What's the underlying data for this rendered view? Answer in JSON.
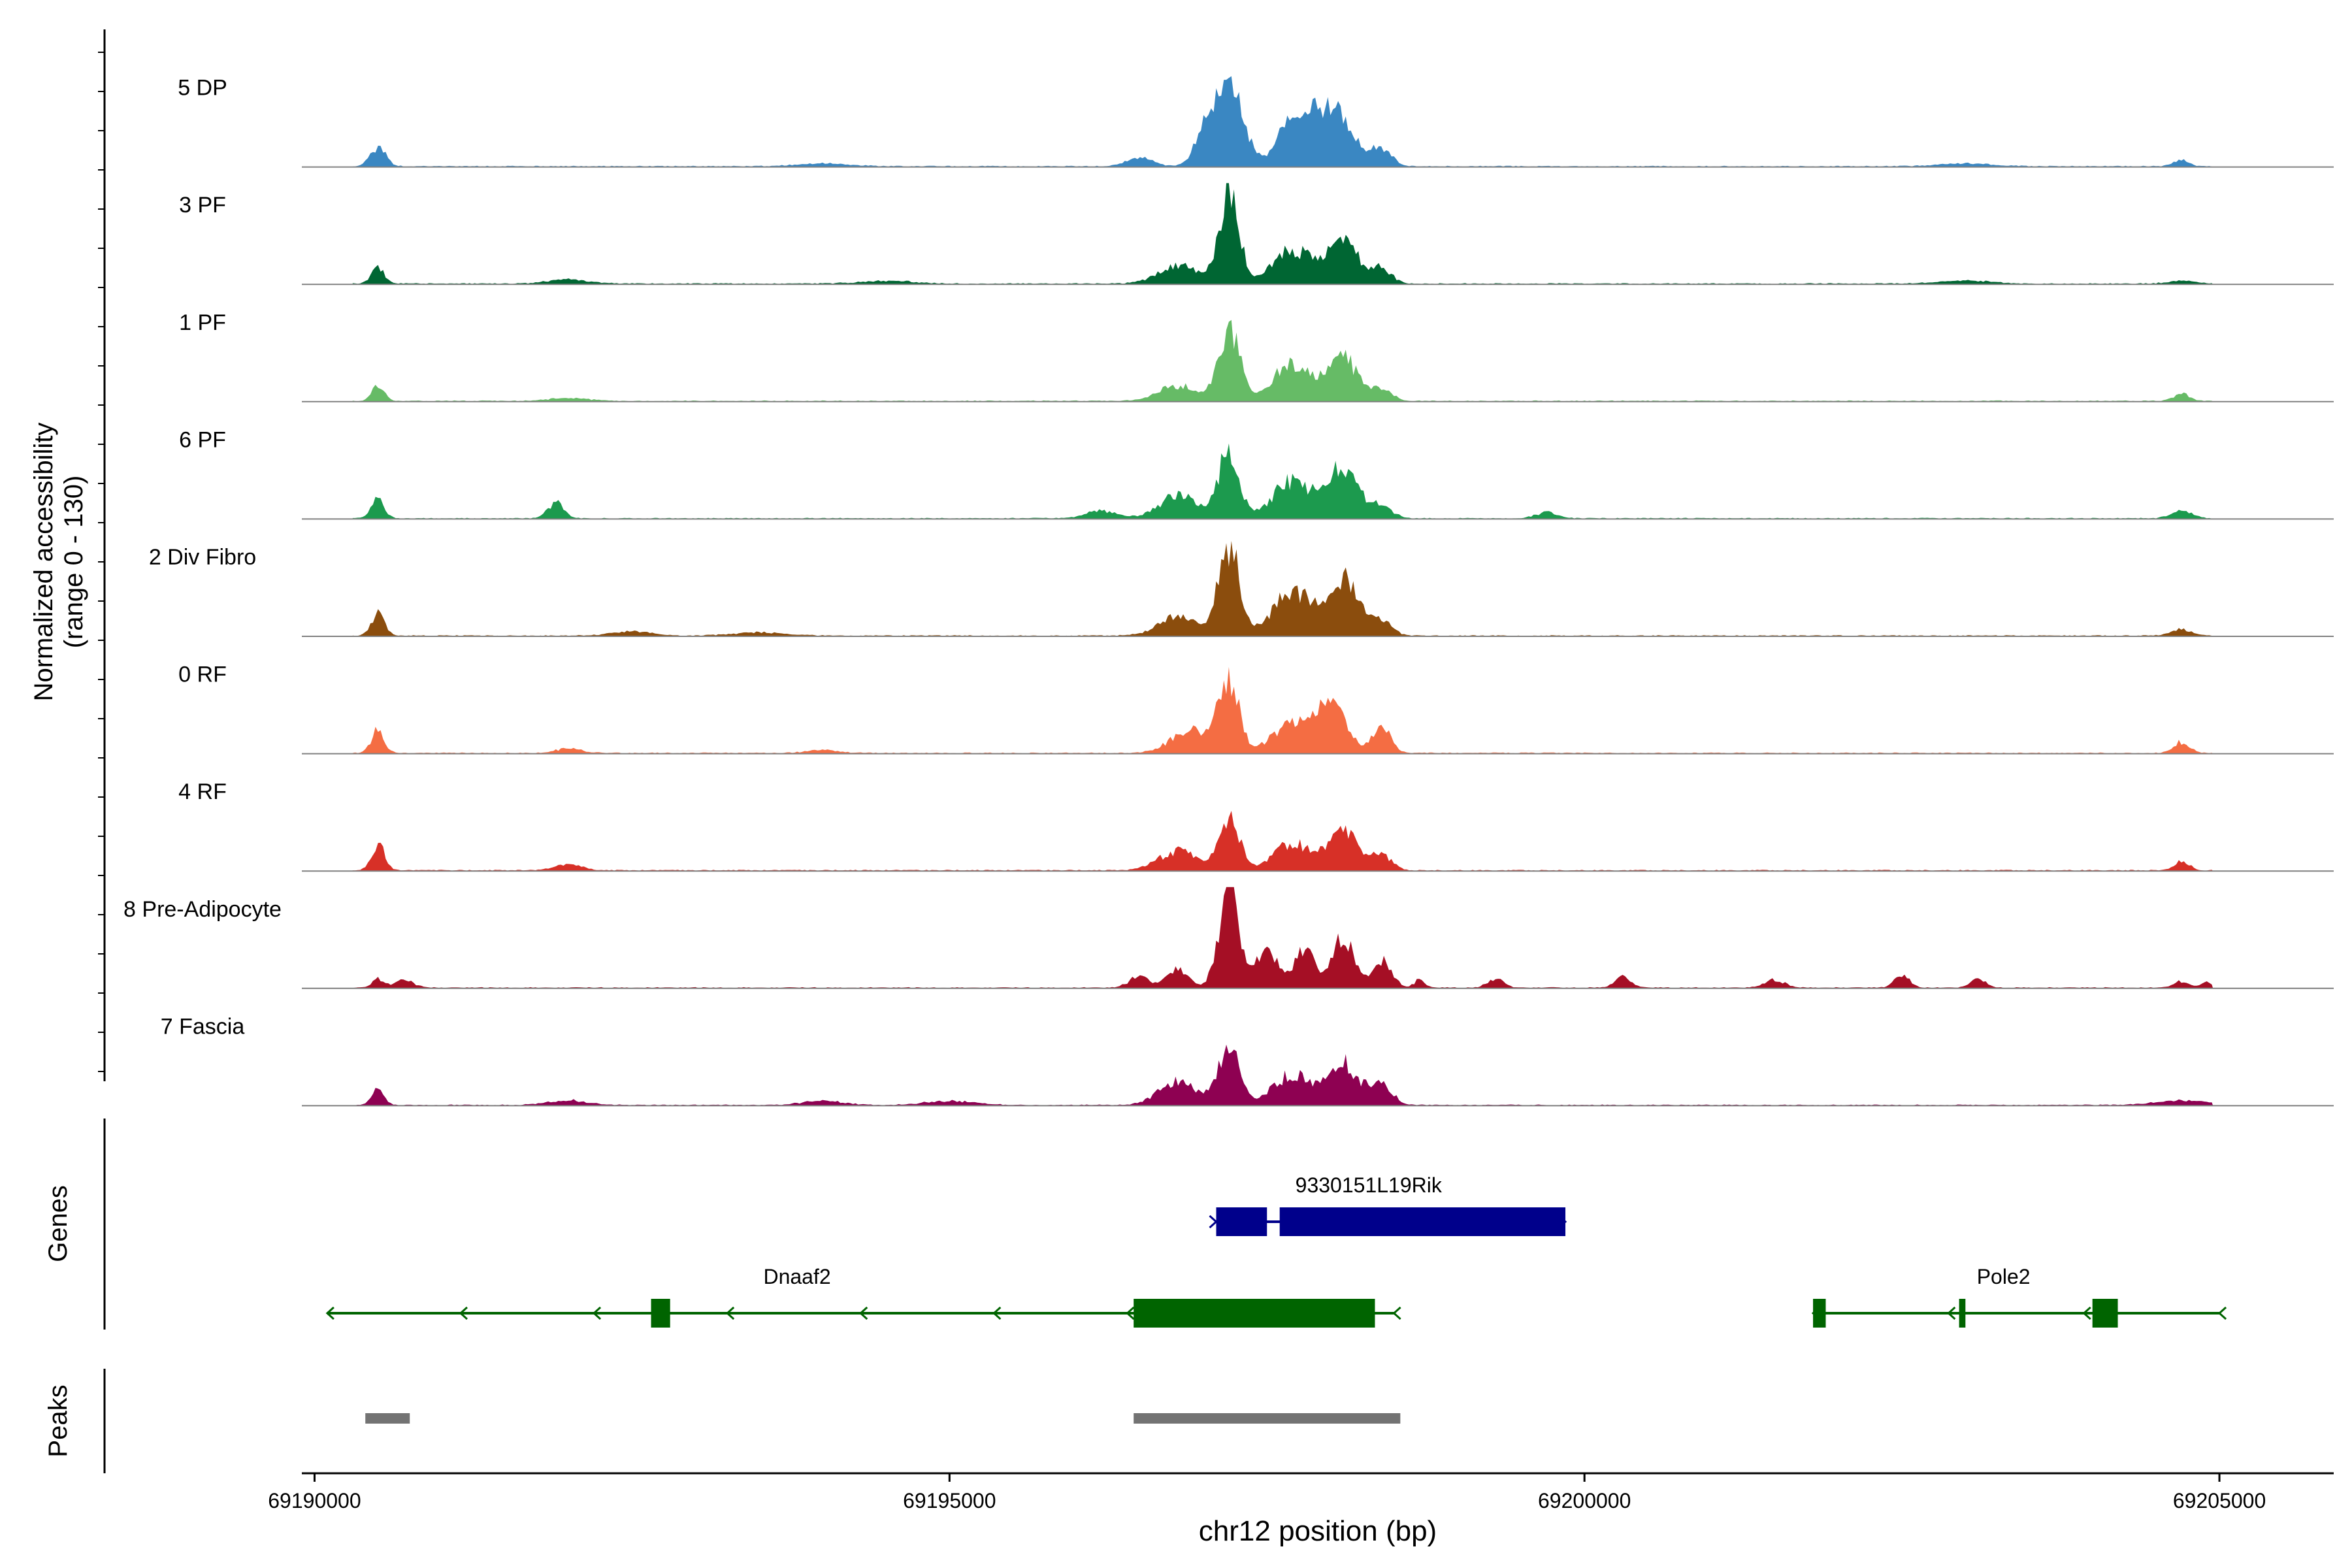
{
  "chart_data": {
    "type": "area",
    "title": "",
    "ylabel_line1": "Normalized accessibility",
    "ylabel_line2": "(range 0 - 130)",
    "ylim": [
      0,
      130
    ],
    "xlabel": "chr12 position (bp)",
    "xlim": [
      69189900,
      69205900
    ],
    "xticks": [
      {
        "value": 69190000,
        "label": "69190000"
      },
      {
        "value": 69195000,
        "label": "69195000"
      },
      {
        "value": 69200000,
        "label": "69200000"
      },
      {
        "value": 69205000,
        "label": "69205000"
      }
    ],
    "series": [
      {
        "name": "5 DP",
        "color": "#3A87C2",
        "peaks": [
          [
            69190500,
            25,
            60
          ],
          [
            69196500,
            12,
            100
          ],
          [
            69197000,
            35,
            80
          ],
          [
            69197200,
            110,
            110
          ],
          [
            69197700,
            55,
            120
          ],
          [
            69198000,
            75,
            160
          ],
          [
            69198400,
            22,
            80
          ],
          [
            69194000,
            4,
            200
          ],
          [
            69203000,
            4,
            200
          ],
          [
            69204700,
            8,
            60
          ]
        ]
      },
      {
        "name": "3 PF",
        "color": "#006633",
        "peaks": [
          [
            69190500,
            22,
            50
          ],
          [
            69196800,
            25,
            150
          ],
          [
            69197200,
            120,
            80
          ],
          [
            69197700,
            45,
            150
          ],
          [
            69198100,
            55,
            120
          ],
          [
            69198400,
            20,
            80
          ],
          [
            69192000,
            6,
            150
          ],
          [
            69194500,
            4,
            200
          ],
          [
            69203000,
            4,
            200
          ],
          [
            69204700,
            4,
            100
          ]
        ]
      },
      {
        "name": "1 PF",
        "color": "#66BB66",
        "peaks": [
          [
            69190500,
            20,
            50
          ],
          [
            69196800,
            20,
            150
          ],
          [
            69197200,
            100,
            80
          ],
          [
            69197700,
            50,
            150
          ],
          [
            69198100,
            55,
            120
          ],
          [
            69198400,
            15,
            80
          ],
          [
            69192000,
            4,
            150
          ],
          [
            69204700,
            10,
            60
          ]
        ]
      },
      {
        "name": "6 PF",
        "color": "#1C9A4E",
        "peaks": [
          [
            69190500,
            25,
            50
          ],
          [
            69191900,
            20,
            60
          ],
          [
            69196200,
            10,
            120
          ],
          [
            69196800,
            30,
            150
          ],
          [
            69197200,
            90,
            80
          ],
          [
            69197700,
            50,
            150
          ],
          [
            69198100,
            65,
            120
          ],
          [
            69198400,
            18,
            80
          ],
          [
            69199700,
            8,
            80
          ],
          [
            69204700,
            10,
            80
          ]
        ]
      },
      {
        "name": "2 Div Fibro",
        "color": "#8B4D0D",
        "peaks": [
          [
            69190500,
            30,
            50
          ],
          [
            69196800,
            25,
            150
          ],
          [
            69197200,
            120,
            80
          ],
          [
            69197700,
            60,
            150
          ],
          [
            69198100,
            75,
            120
          ],
          [
            69198400,
            20,
            80
          ],
          [
            69192500,
            6,
            150
          ],
          [
            69204700,
            8,
            80
          ],
          [
            69193500,
            4,
            200
          ]
        ]
      },
      {
        "name": "0 RF",
        "color": "#F46D43",
        "peaks": [
          [
            69190500,
            30,
            50
          ],
          [
            69196900,
            30,
            150
          ],
          [
            69197200,
            95,
            80
          ],
          [
            69197700,
            40,
            150
          ],
          [
            69198000,
            65,
            120
          ],
          [
            69198400,
            35,
            70
          ],
          [
            69192000,
            6,
            100
          ],
          [
            69194000,
            4,
            120
          ],
          [
            69204700,
            15,
            60
          ]
        ]
      },
      {
        "name": "4 RF",
        "color": "#D73027",
        "peaks": [
          [
            69190500,
            35,
            50
          ],
          [
            69196800,
            25,
            150
          ],
          [
            69197200,
            70,
            80
          ],
          [
            69197700,
            35,
            150
          ],
          [
            69198100,
            50,
            120
          ],
          [
            69198400,
            20,
            80
          ],
          [
            69192000,
            8,
            100
          ],
          [
            69204700,
            12,
            60
          ]
        ]
      },
      {
        "name": "8 Pre-Adipocyte",
        "color": "#A50F25",
        "peaks": [
          [
            69190500,
            12,
            40
          ],
          [
            69190700,
            10,
            80
          ],
          [
            69196500,
            15,
            80
          ],
          [
            69196800,
            25,
            80
          ],
          [
            69197200,
            130,
            80
          ],
          [
            69197500,
            55,
            80
          ],
          [
            69197800,
            55,
            80
          ],
          [
            69198100,
            65,
            80
          ],
          [
            69198400,
            35,
            80
          ],
          [
            69198700,
            10,
            40
          ],
          [
            69199300,
            12,
            60
          ],
          [
            69200300,
            15,
            60
          ],
          [
            69201500,
            10,
            80
          ],
          [
            69202500,
            15,
            60
          ],
          [
            69203100,
            12,
            60
          ],
          [
            69204700,
            8,
            60
          ],
          [
            69204900,
            8,
            40
          ]
        ]
      },
      {
        "name": "7 Fascia",
        "color": "#8E0152",
        "peaks": [
          [
            69190500,
            20,
            50
          ],
          [
            69196800,
            30,
            150
          ],
          [
            69197200,
            80,
            80
          ],
          [
            69197700,
            40,
            150
          ],
          [
            69198100,
            55,
            120
          ],
          [
            69198400,
            30,
            80
          ],
          [
            69192000,
            6,
            150
          ],
          [
            69194000,
            6,
            150
          ],
          [
            69195000,
            5,
            200
          ],
          [
            69204700,
            6,
            200
          ]
        ]
      }
    ],
    "genes_label": "Genes",
    "peaks_label": "Peaks",
    "genes": [
      {
        "name": "9330151L19Rik",
        "color": "#00008B",
        "strand": "+",
        "start": 69197100,
        "end": 69199850,
        "exons": [
          [
            69197100,
            69197500
          ],
          [
            69197600,
            69199850
          ]
        ]
      },
      {
        "name": "Dnaaf2",
        "color": "#006400",
        "strand": "-",
        "start": 69190100,
        "end": 69198500,
        "exons": [
          [
            69192650,
            69192800
          ],
          [
            69196450,
            69198350
          ]
        ]
      },
      {
        "name": "Pole2",
        "color": "#006400",
        "strand": "-",
        "start": 69201800,
        "end": 69205000,
        "exons": [
          [
            69201800,
            69201900
          ],
          [
            69202950,
            69203000
          ],
          [
            69204000,
            69204200
          ]
        ]
      }
    ],
    "peak_regions": [
      [
        69190400,
        69190750
      ],
      [
        69196450,
        69198550
      ]
    ]
  }
}
